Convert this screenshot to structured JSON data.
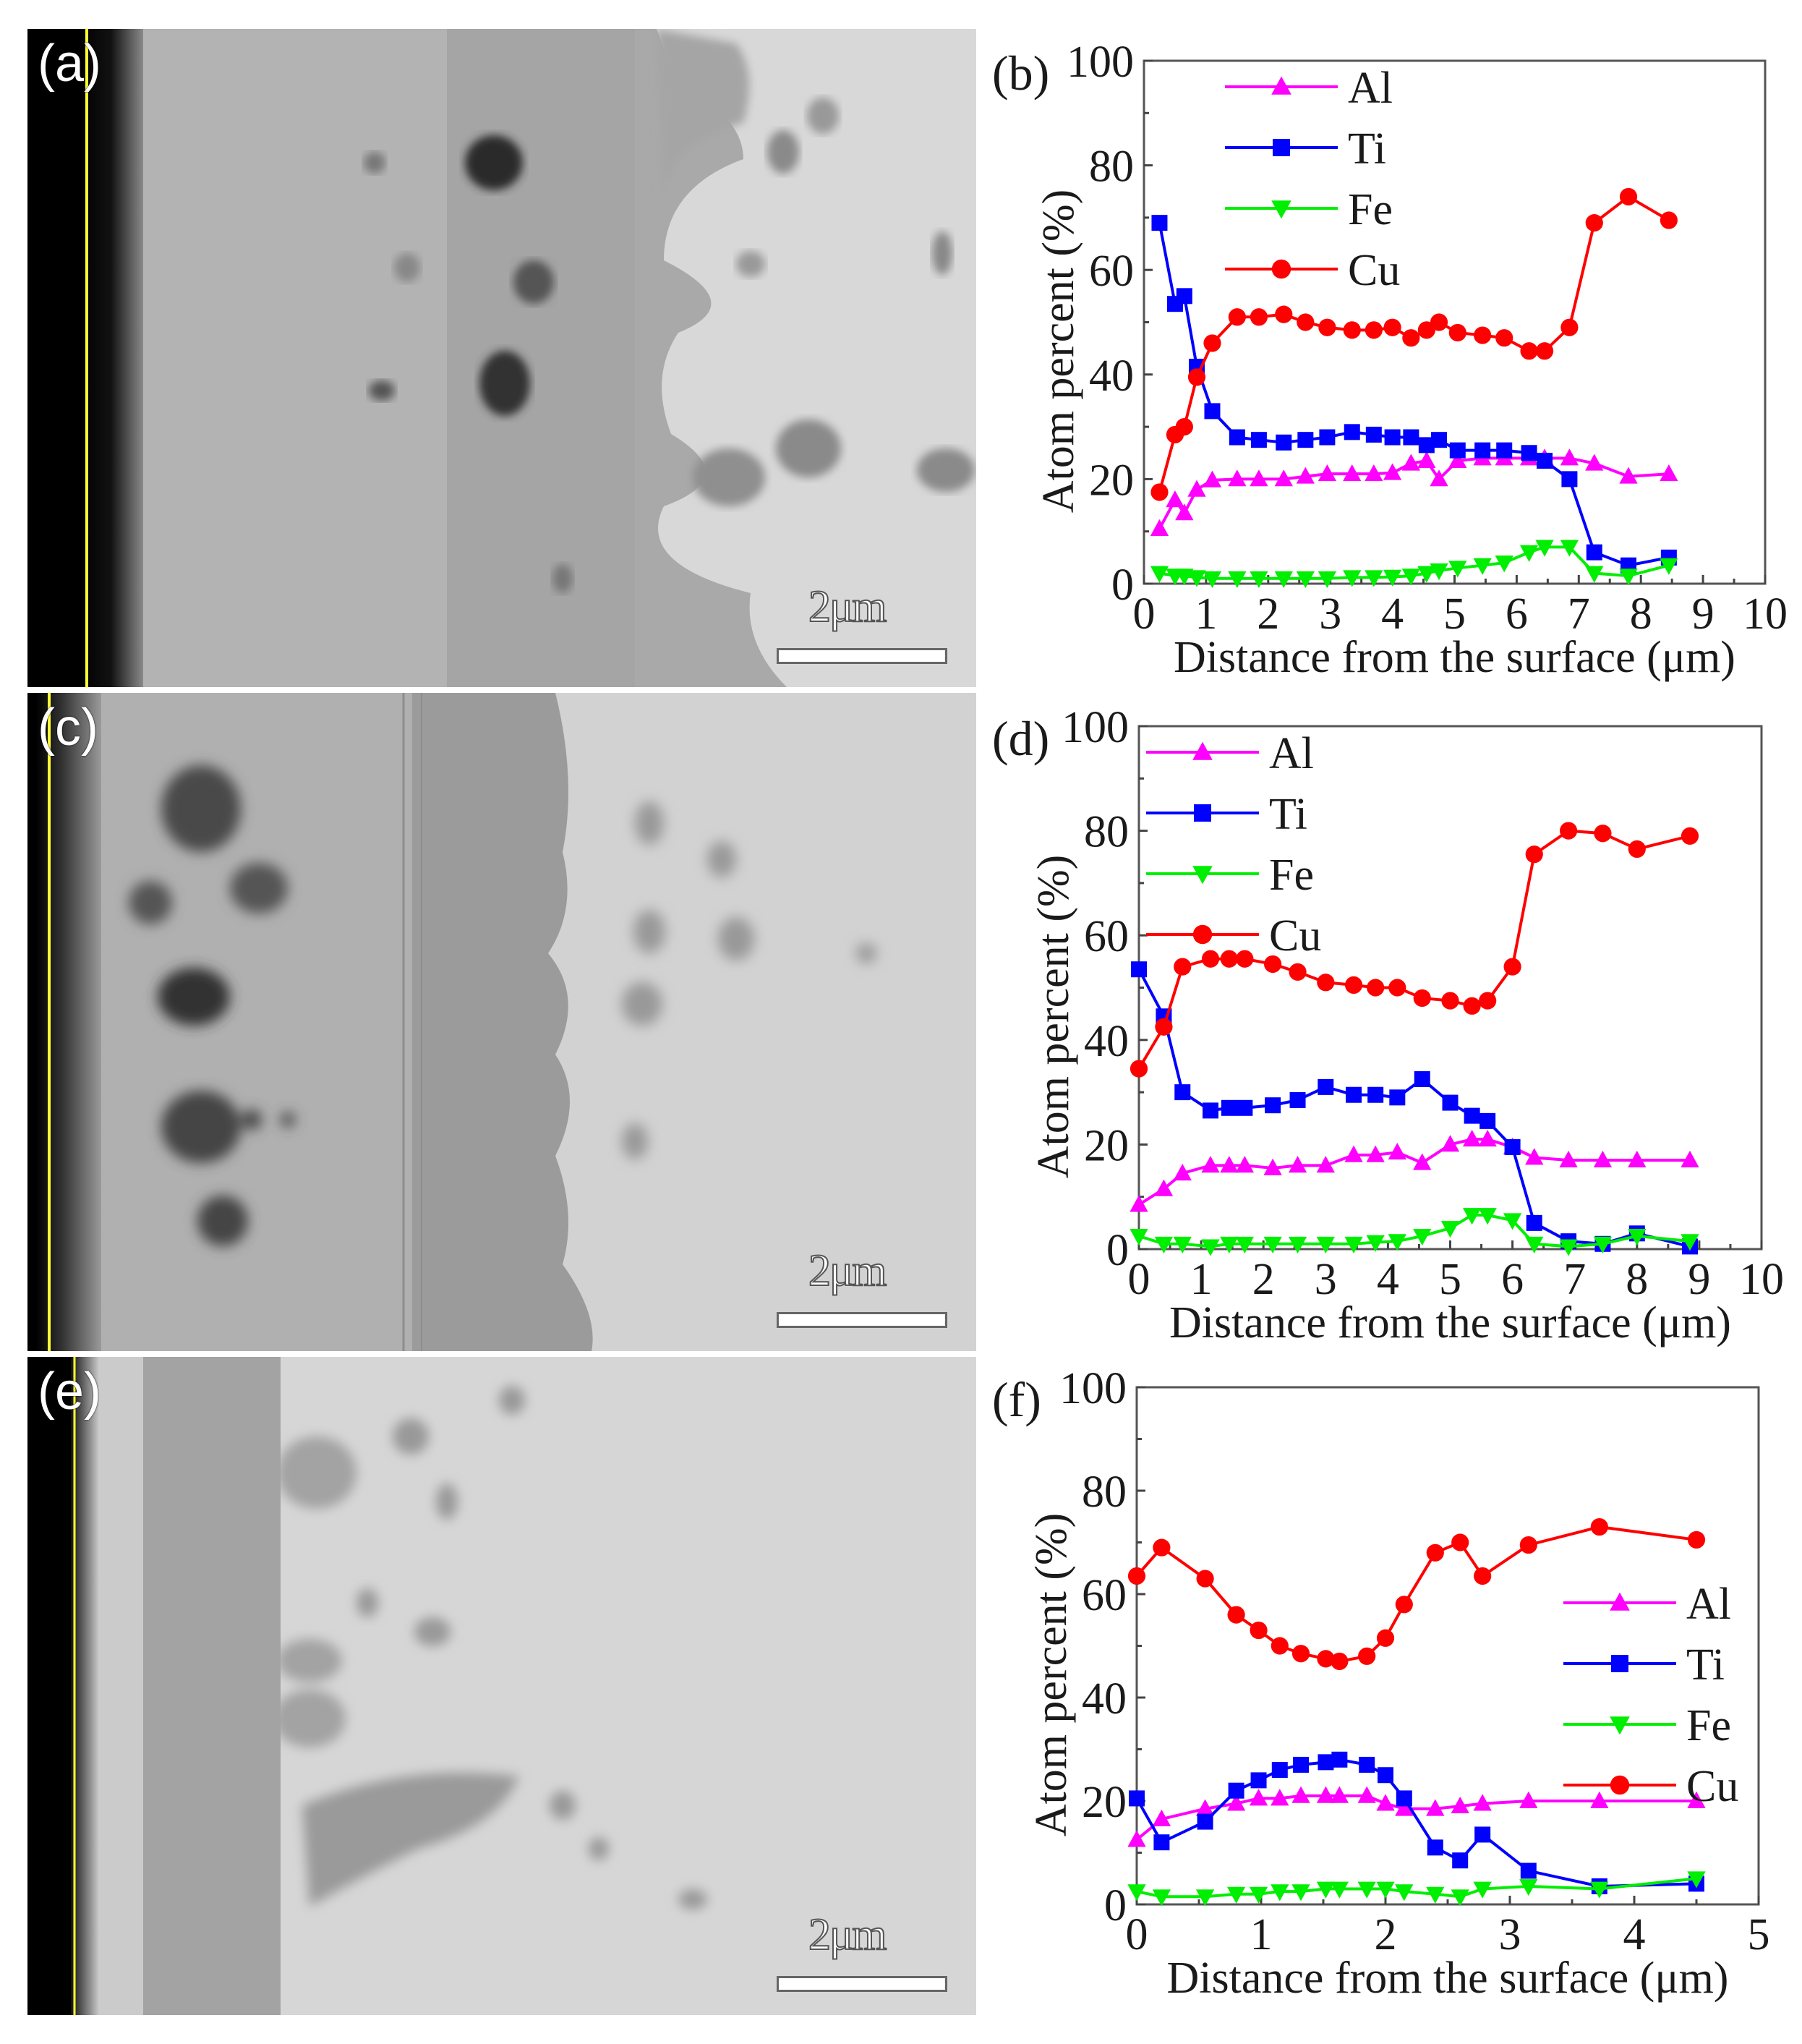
{
  "figure": {
    "panels": [
      {
        "id": "a",
        "label": "(a)",
        "type": "micrograph",
        "scale_bar": "2μm"
      },
      {
        "id": "c",
        "label": "(c)",
        "type": "micrograph",
        "scale_bar": "2μm"
      },
      {
        "id": "e",
        "label": "(e)",
        "type": "micrograph",
        "scale_bar": "2μm"
      }
    ],
    "colors": {
      "Al": "#ff00ff",
      "Ti": "#0000ff",
      "Fe": "#00ee00",
      "Cu": "#ff0000",
      "surface_line": "#ffff33"
    }
  },
  "chart_data": [
    {
      "panel": "(b)",
      "type": "line",
      "xlabel": "Distance from the surface (μm)",
      "ylabel": "Atom percent (%)",
      "xlim": [
        0,
        10
      ],
      "ylim": [
        0,
        100
      ],
      "xticks": [
        0,
        1,
        2,
        3,
        4,
        5,
        6,
        7,
        8,
        9,
        10
      ],
      "yticks": [
        0,
        20,
        40,
        60,
        80,
        100
      ],
      "grid": false,
      "legend": {
        "position": "upper-left",
        "entries": [
          "Al",
          "Ti",
          "Fe",
          "Cu"
        ]
      },
      "series": [
        {
          "name": "Al",
          "marker": "triangle-up",
          "color": "#ff00ff",
          "x": [
            0.25,
            0.5,
            0.65,
            0.85,
            1.1,
            1.5,
            1.85,
            2.25,
            2.6,
            2.95,
            3.35,
            3.7,
            4.0,
            4.3,
            4.55,
            4.75,
            5.05,
            5.45,
            5.8,
            6.2,
            6.45,
            6.85,
            7.25,
            7.8,
            8.45
          ],
          "y": [
            10.5,
            16,
            13.5,
            18,
            19.8,
            20,
            20,
            20,
            20.5,
            21,
            21,
            21,
            21.2,
            23,
            23.5,
            20,
            23.5,
            24,
            24,
            24,
            24,
            24,
            23,
            20.5,
            21
          ]
        },
        {
          "name": "Ti",
          "marker": "square",
          "color": "#0000ff",
          "x": [
            0.25,
            0.5,
            0.65,
            0.85,
            1.1,
            1.5,
            1.85,
            2.25,
            2.6,
            2.95,
            3.35,
            3.7,
            4.0,
            4.3,
            4.55,
            4.75,
            5.05,
            5.45,
            5.8,
            6.2,
            6.45,
            6.85,
            7.25,
            7.8,
            8.45
          ],
          "y": [
            69,
            53.5,
            55,
            41.5,
            33,
            28,
            27.5,
            27,
            27.5,
            28,
            29,
            28.5,
            28,
            28,
            26.5,
            27.5,
            25.5,
            25.5,
            25.5,
            25,
            23.5,
            20,
            6,
            3.5,
            5
          ]
        },
        {
          "name": "Fe",
          "marker": "triangle-down",
          "color": "#00ee00",
          "x": [
            0.25,
            0.5,
            0.65,
            0.85,
            1.1,
            1.5,
            1.85,
            2.25,
            2.6,
            2.95,
            3.35,
            3.7,
            4.0,
            4.3,
            4.55,
            4.75,
            5.05,
            5.45,
            5.8,
            6.2,
            6.45,
            6.85,
            7.25,
            7.8,
            8.45
          ],
          "y": [
            2,
            1.5,
            1.5,
            1.2,
            1,
            1,
            1,
            1,
            1,
            1,
            1.2,
            1.2,
            1.3,
            1.5,
            2,
            2.5,
            3,
            3.5,
            4,
            6,
            7,
            7,
            2,
            1.5,
            3.5
          ]
        },
        {
          "name": "Cu",
          "marker": "circle",
          "color": "#ff0000",
          "x": [
            0.25,
            0.5,
            0.65,
            0.85,
            1.1,
            1.5,
            1.85,
            2.25,
            2.6,
            2.95,
            3.35,
            3.7,
            4.0,
            4.3,
            4.55,
            4.75,
            5.05,
            5.45,
            5.8,
            6.2,
            6.45,
            6.85,
            7.25,
            7.8,
            8.45
          ],
          "y": [
            17.5,
            28.5,
            30,
            39.5,
            46,
            51,
            51,
            51.5,
            50,
            49,
            48.5,
            48.5,
            49,
            47,
            48.5,
            50,
            48,
            47.5,
            47,
            44.5,
            44.5,
            49,
            69,
            74,
            69.5
          ]
        }
      ]
    },
    {
      "panel": "(d)",
      "type": "line",
      "xlabel": "Distance from the surface (μm)",
      "ylabel": "Atom percent (%)",
      "xlim": [
        0,
        10
      ],
      "ylim": [
        0,
        100
      ],
      "xticks": [
        0,
        1,
        2,
        3,
        4,
        5,
        6,
        7,
        8,
        9,
        10
      ],
      "yticks": [
        0,
        20,
        40,
        60,
        80,
        100
      ],
      "grid": false,
      "legend": {
        "position": "upper-left",
        "entries": [
          "Al",
          "Ti",
          "Fe",
          "Cu"
        ]
      },
      "series": [
        {
          "name": "Al",
          "marker": "triangle-up",
          "color": "#ff00ff",
          "x": [
            0,
            0.4,
            0.7,
            1.15,
            1.45,
            1.7,
            2.15,
            2.55,
            3.0,
            3.45,
            3.8,
            4.15,
            4.55,
            5.0,
            5.35,
            5.6,
            6.0,
            6.35,
            6.9,
            7.45,
            8.0,
            8.85
          ],
          "y": [
            8.5,
            11.5,
            14.5,
            16,
            16,
            16,
            15.5,
            16,
            16,
            18,
            18,
            18.5,
            16.5,
            20,
            21,
            21,
            19.5,
            17.5,
            17,
            17,
            17,
            17
          ]
        },
        {
          "name": "Ti",
          "marker": "square",
          "color": "#0000ff",
          "x": [
            0,
            0.4,
            0.7,
            1.15,
            1.45,
            1.7,
            2.15,
            2.55,
            3.0,
            3.45,
            3.8,
            4.15,
            4.55,
            5.0,
            5.35,
            5.6,
            6.0,
            6.35,
            6.9,
            7.45,
            8.0,
            8.85
          ],
          "y": [
            53.5,
            44.5,
            30,
            26.5,
            27,
            27,
            27.5,
            28.5,
            31,
            29.5,
            29.5,
            29,
            32.5,
            28,
            25.5,
            24.5,
            19.5,
            5,
            1.5,
            1,
            3,
            0.5
          ]
        },
        {
          "name": "Fe",
          "marker": "triangle-down",
          "color": "#00ee00",
          "x": [
            0,
            0.4,
            0.7,
            1.15,
            1.45,
            1.7,
            2.15,
            2.55,
            3.0,
            3.45,
            3.8,
            4.15,
            4.55,
            5.0,
            5.35,
            5.6,
            6.0,
            6.35,
            6.9,
            7.45,
            8.0,
            8.85
          ],
          "y": [
            2.5,
            1,
            1,
            0.5,
            1,
            1,
            1,
            1,
            1,
            1,
            1.3,
            1.5,
            2.5,
            4,
            6.5,
            6.5,
            5.5,
            1,
            0.5,
            1,
            2.5,
            1.5
          ]
        },
        {
          "name": "Cu",
          "marker": "circle",
          "color": "#ff0000",
          "x": [
            0,
            0.4,
            0.7,
            1.15,
            1.45,
            1.7,
            2.15,
            2.55,
            3.0,
            3.45,
            3.8,
            4.15,
            4.55,
            5.0,
            5.35,
            5.6,
            6.0,
            6.35,
            6.9,
            7.45,
            8.0,
            8.85
          ],
          "y": [
            34.5,
            42.5,
            54,
            55.5,
            55.5,
            55.5,
            54.5,
            53,
            51,
            50.5,
            50,
            50,
            48,
            47.5,
            46.5,
            47.5,
            54,
            75.5,
            80,
            79.5,
            76.5,
            79
          ]
        }
      ]
    },
    {
      "panel": "(f)",
      "type": "line",
      "xlabel": "Distance from the surface (μm)",
      "ylabel": "Atom percent (%)",
      "xlim": [
        0,
        5
      ],
      "ylim": [
        0,
        100
      ],
      "xticks": [
        0,
        1,
        2,
        3,
        4,
        5
      ],
      "yticks": [
        0,
        20,
        40,
        60,
        80,
        100
      ],
      "grid": false,
      "legend": {
        "position": "center-right",
        "entries": [
          "Al",
          "Ti",
          "Fe",
          "Cu"
        ]
      },
      "series": [
        {
          "name": "Al",
          "marker": "triangle-up",
          "color": "#ff00ff",
          "x": [
            0,
            0.2,
            0.55,
            0.8,
            0.98,
            1.15,
            1.32,
            1.52,
            1.63,
            1.85,
            2.0,
            2.15,
            2.4,
            2.6,
            2.78,
            3.15,
            3.72,
            4.5
          ],
          "y": [
            12.5,
            16.5,
            18.5,
            19.5,
            20.5,
            20.5,
            21,
            21,
            21,
            21,
            19.5,
            18.5,
            18.5,
            19,
            19.5,
            20,
            20,
            20
          ]
        },
        {
          "name": "Ti",
          "marker": "square",
          "color": "#0000ff",
          "x": [
            0,
            0.2,
            0.55,
            0.8,
            0.98,
            1.15,
            1.32,
            1.52,
            1.63,
            1.85,
            2.0,
            2.15,
            2.4,
            2.6,
            2.78,
            3.15,
            3.72,
            4.5
          ],
          "y": [
            20.5,
            12,
            16,
            22,
            24,
            26,
            27,
            27.5,
            28,
            27,
            25,
            20.5,
            11,
            8.5,
            13.5,
            6.5,
            3.5,
            4
          ]
        },
        {
          "name": "Fe",
          "marker": "triangle-down",
          "color": "#00ee00",
          "x": [
            0,
            0.2,
            0.55,
            0.8,
            0.98,
            1.15,
            1.32,
            1.52,
            1.63,
            1.85,
            2.0,
            2.15,
            2.4,
            2.6,
            2.78,
            3.15,
            3.72,
            4.5
          ],
          "y": [
            2.5,
            1.5,
            1.5,
            2,
            2,
            2.5,
            2.5,
            3,
            3,
            3,
            3,
            2.5,
            2,
            1.5,
            3,
            3.5,
            3,
            5
          ]
        },
        {
          "name": "Cu",
          "marker": "circle",
          "color": "#ff0000",
          "x": [
            0,
            0.2,
            0.55,
            0.8,
            0.98,
            1.15,
            1.32,
            1.52,
            1.63,
            1.85,
            2.0,
            2.15,
            2.4,
            2.6,
            2.78,
            3.15,
            3.72,
            4.5
          ],
          "y": [
            63.5,
            69,
            63,
            56,
            53,
            50,
            48.5,
            47.5,
            47,
            48,
            51.5,
            58,
            68,
            70,
            63.5,
            69.5,
            73,
            70.5
          ]
        }
      ]
    }
  ]
}
